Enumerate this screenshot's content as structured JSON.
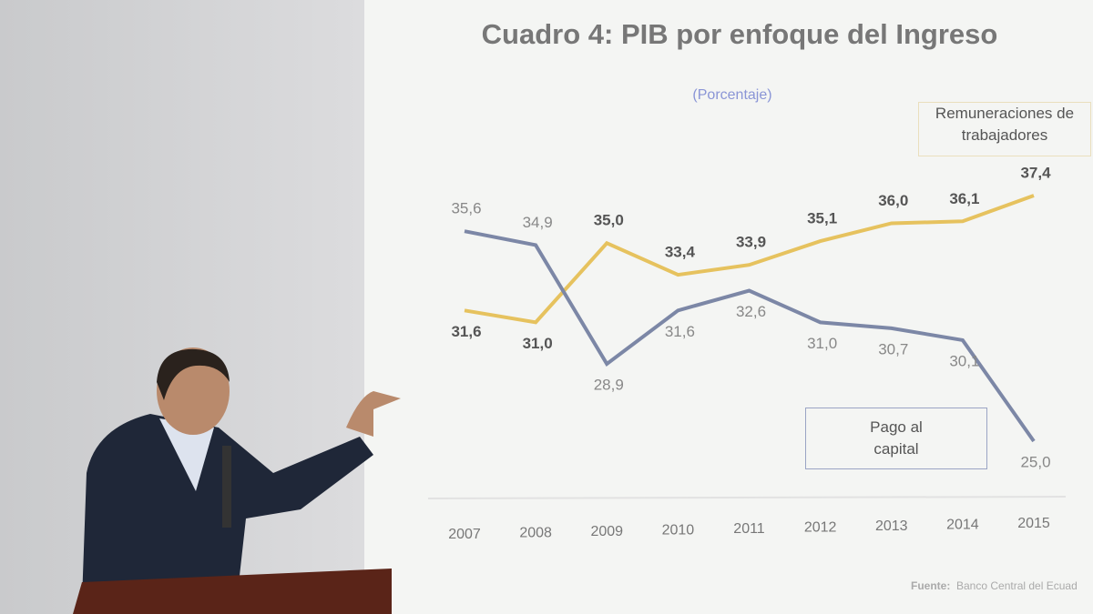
{
  "chart_data": {
    "type": "line",
    "title": "Cuadro 4: PIB por enfoque del Ingreso",
    "subtitle": "(Porcentaje)",
    "categories": [
      "2007",
      "2008",
      "2009",
      "2010",
      "2011",
      "2012",
      "2013",
      "2014",
      "2015"
    ],
    "series": [
      {
        "name": "Remuneraciones de trabajadores",
        "color": "#e6c25e",
        "values": [
          31.6,
          31.0,
          35.0,
          33.4,
          33.9,
          35.1,
          36.0,
          36.1,
          37.4
        ],
        "value_labels": [
          "31,6",
          "31,0",
          "35,0",
          "33,4",
          "33,9",
          "35,1",
          "36,0",
          "36,1",
          "37,4"
        ]
      },
      {
        "name": "Pago al capital",
        "color": "#7c87a6",
        "values": [
          35.6,
          34.9,
          28.9,
          31.6,
          32.6,
          31.0,
          30.7,
          30.1,
          25.0
        ],
        "value_labels": [
          "35,6",
          "34,9",
          "28,9",
          "31,6",
          "32,6",
          "31,0",
          "30,7",
          "30,1",
          "25,0"
        ]
      }
    ],
    "source_label": "Fuente:",
    "source": "Banco Central del Ecuad"
  }
}
